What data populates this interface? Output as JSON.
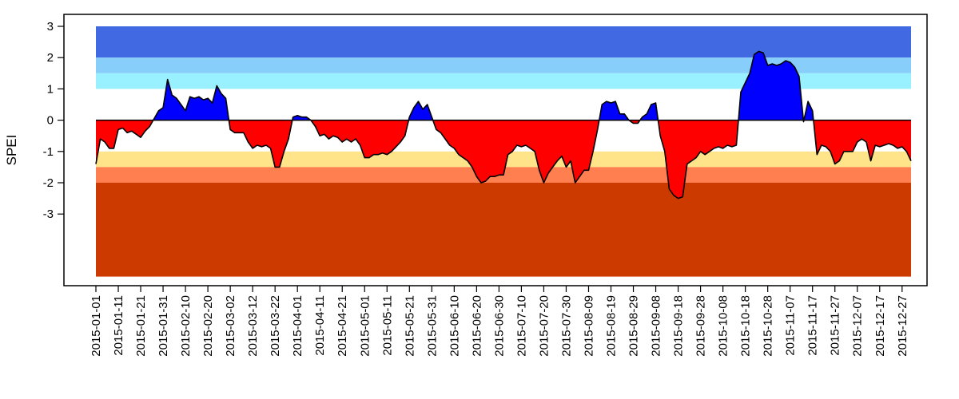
{
  "chart_data": {
    "type": "area",
    "title": "",
    "xlabel": "",
    "ylabel": "SPEI",
    "x_range": [
      "2015-01-01",
      "2015-12-31"
    ],
    "ylim": [
      -5,
      3.2
    ],
    "y_ticks": [
      3,
      2,
      1,
      0,
      -1,
      -2,
      -3
    ],
    "x_tick_labels": [
      "2015-01-01",
      "2015-01-11",
      "2015-01-21",
      "2015-01-31",
      "2015-02-10",
      "2015-02-20",
      "2015-03-02",
      "2015-03-12",
      "2015-03-22",
      "2015-04-01",
      "2015-04-11",
      "2015-04-21",
      "2015-05-01",
      "2015-05-11",
      "2015-05-21",
      "2015-05-31",
      "2015-06-10",
      "2015-06-20",
      "2015-06-30",
      "2015-07-10",
      "2015-07-20",
      "2015-07-30",
      "2015-08-09",
      "2015-08-19",
      "2015-08-29",
      "2015-09-08",
      "2015-09-18",
      "2015-09-28",
      "2015-10-08",
      "2015-10-18",
      "2015-10-28",
      "2015-11-07",
      "2015-11-17",
      "2015-11-27",
      "2015-12-07",
      "2015-12-17",
      "2015-12-27"
    ],
    "grid": false,
    "legend": "none",
    "background_bands": [
      {
        "from": 2,
        "to": 3,
        "color": "#4169e1"
      },
      {
        "from": 1.5,
        "to": 2,
        "color": "#87cefa"
      },
      {
        "from": 1,
        "to": 1.5,
        "color": "#99f0ff"
      },
      {
        "from": -1.5,
        "to": -1,
        "color": "#ffe48a"
      },
      {
        "from": -2,
        "to": -1.5,
        "color": "#ff7f50"
      },
      {
        "from": -5,
        "to": -2,
        "color": "#cc3a00"
      }
    ],
    "fill_colors": {
      "positive": "#0000ff",
      "negative": "#ff0000"
    },
    "series": [
      {
        "points": [
          [
            "2015-01-01",
            -1.4
          ],
          [
            "2015-01-03",
            -0.6
          ],
          [
            "2015-01-05",
            -0.7
          ],
          [
            "2015-01-07",
            -0.9
          ],
          [
            "2015-01-09",
            -0.9
          ],
          [
            "2015-01-11",
            -0.3
          ],
          [
            "2015-01-13",
            -0.25
          ],
          [
            "2015-01-15",
            -0.4
          ],
          [
            "2015-01-17",
            -0.35
          ],
          [
            "2015-01-19",
            -0.45
          ],
          [
            "2015-01-21",
            -0.55
          ],
          [
            "2015-01-23",
            -0.35
          ],
          [
            "2015-01-25",
            -0.2
          ],
          [
            "2015-01-27",
            0.05
          ],
          [
            "2015-01-29",
            0.3
          ],
          [
            "2015-01-31",
            0.4
          ],
          [
            "2015-02-02",
            1.3
          ],
          [
            "2015-02-04",
            0.8
          ],
          [
            "2015-02-06",
            0.7
          ],
          [
            "2015-02-08",
            0.5
          ],
          [
            "2015-02-10",
            0.3
          ],
          [
            "2015-02-12",
            0.75
          ],
          [
            "2015-02-14",
            0.7
          ],
          [
            "2015-02-16",
            0.75
          ],
          [
            "2015-02-18",
            0.65
          ],
          [
            "2015-02-20",
            0.7
          ],
          [
            "2015-02-22",
            0.55
          ],
          [
            "2015-02-24",
            1.1
          ],
          [
            "2015-02-26",
            0.85
          ],
          [
            "2015-02-28",
            0.7
          ],
          [
            "2015-03-02",
            -0.3
          ],
          [
            "2015-03-04",
            -0.4
          ],
          [
            "2015-03-06",
            -0.4
          ],
          [
            "2015-03-08",
            -0.4
          ],
          [
            "2015-03-10",
            -0.7
          ],
          [
            "2015-03-12",
            -0.9
          ],
          [
            "2015-03-14",
            -0.8
          ],
          [
            "2015-03-16",
            -0.85
          ],
          [
            "2015-03-18",
            -0.8
          ],
          [
            "2015-03-20",
            -0.9
          ],
          [
            "2015-03-22",
            -1.5
          ],
          [
            "2015-03-24",
            -1.5
          ],
          [
            "2015-03-26",
            -1.0
          ],
          [
            "2015-03-28",
            -0.6
          ],
          [
            "2015-03-30",
            0.1
          ],
          [
            "2015-04-01",
            0.15
          ],
          [
            "2015-04-03",
            0.1
          ],
          [
            "2015-04-05",
            0.1
          ],
          [
            "2015-04-07",
            0.0
          ],
          [
            "2015-04-09",
            -0.2
          ],
          [
            "2015-04-11",
            -0.5
          ],
          [
            "2015-04-13",
            -0.45
          ],
          [
            "2015-04-15",
            -0.6
          ],
          [
            "2015-04-17",
            -0.5
          ],
          [
            "2015-04-19",
            -0.55
          ],
          [
            "2015-04-21",
            -0.7
          ],
          [
            "2015-04-23",
            -0.6
          ],
          [
            "2015-04-25",
            -0.7
          ],
          [
            "2015-04-27",
            -0.6
          ],
          [
            "2015-04-29",
            -0.8
          ],
          [
            "2015-05-01",
            -1.2
          ],
          [
            "2015-05-03",
            -1.2
          ],
          [
            "2015-05-05",
            -1.1
          ],
          [
            "2015-05-07",
            -1.1
          ],
          [
            "2015-05-09",
            -1.05
          ],
          [
            "2015-05-11",
            -1.1
          ],
          [
            "2015-05-13",
            -1.0
          ],
          [
            "2015-05-15",
            -0.85
          ],
          [
            "2015-05-17",
            -0.7
          ],
          [
            "2015-05-19",
            -0.5
          ],
          [
            "2015-05-21",
            0.1
          ],
          [
            "2015-05-23",
            0.4
          ],
          [
            "2015-05-25",
            0.6
          ],
          [
            "2015-05-27",
            0.35
          ],
          [
            "2015-05-29",
            0.5
          ],
          [
            "2015-05-31",
            0.1
          ],
          [
            "2015-06-02",
            -0.3
          ],
          [
            "2015-06-04",
            -0.4
          ],
          [
            "2015-06-06",
            -0.6
          ],
          [
            "2015-06-08",
            -0.8
          ],
          [
            "2015-06-10",
            -0.9
          ],
          [
            "2015-06-12",
            -1.1
          ],
          [
            "2015-06-14",
            -1.2
          ],
          [
            "2015-06-16",
            -1.3
          ],
          [
            "2015-06-18",
            -1.5
          ],
          [
            "2015-06-20",
            -1.8
          ],
          [
            "2015-06-22",
            -2.0
          ],
          [
            "2015-06-24",
            -1.95
          ],
          [
            "2015-06-26",
            -1.8
          ],
          [
            "2015-06-28",
            -1.8
          ],
          [
            "2015-06-30",
            -1.75
          ],
          [
            "2015-07-02",
            -1.75
          ],
          [
            "2015-07-04",
            -1.1
          ],
          [
            "2015-07-06",
            -1.0
          ],
          [
            "2015-07-08",
            -0.8
          ],
          [
            "2015-07-10",
            -0.85
          ],
          [
            "2015-07-12",
            -0.8
          ],
          [
            "2015-07-14",
            -0.9
          ],
          [
            "2015-07-16",
            -1.0
          ],
          [
            "2015-07-18",
            -1.6
          ],
          [
            "2015-07-20",
            -2.0
          ],
          [
            "2015-07-22",
            -1.7
          ],
          [
            "2015-07-24",
            -1.5
          ],
          [
            "2015-07-26",
            -1.3
          ],
          [
            "2015-07-28",
            -1.15
          ],
          [
            "2015-07-30",
            -1.5
          ],
          [
            "2015-08-01",
            -1.3
          ],
          [
            "2015-08-03",
            -2.0
          ],
          [
            "2015-08-05",
            -1.8
          ],
          [
            "2015-08-07",
            -1.6
          ],
          [
            "2015-08-09",
            -1.6
          ],
          [
            "2015-08-11",
            -1.0
          ],
          [
            "2015-08-13",
            -0.3
          ],
          [
            "2015-08-15",
            0.5
          ],
          [
            "2015-08-17",
            0.6
          ],
          [
            "2015-08-19",
            0.55
          ],
          [
            "2015-08-21",
            0.6
          ],
          [
            "2015-08-23",
            0.2
          ],
          [
            "2015-08-25",
            0.2
          ],
          [
            "2015-08-27",
            0.0
          ],
          [
            "2015-08-29",
            -0.1
          ],
          [
            "2015-08-31",
            -0.1
          ],
          [
            "2015-09-02",
            0.1
          ],
          [
            "2015-09-04",
            0.2
          ],
          [
            "2015-09-06",
            0.5
          ],
          [
            "2015-09-08",
            0.55
          ],
          [
            "2015-09-10",
            -0.5
          ],
          [
            "2015-09-12",
            -1.0
          ],
          [
            "2015-09-14",
            -2.2
          ],
          [
            "2015-09-16",
            -2.4
          ],
          [
            "2015-09-18",
            -2.5
          ],
          [
            "2015-09-20",
            -2.45
          ],
          [
            "2015-09-22",
            -1.4
          ],
          [
            "2015-09-24",
            -1.3
          ],
          [
            "2015-09-26",
            -1.2
          ],
          [
            "2015-09-28",
            -1.0
          ],
          [
            "2015-09-30",
            -1.1
          ],
          [
            "2015-10-02",
            -1.0
          ],
          [
            "2015-10-04",
            -0.9
          ],
          [
            "2015-10-06",
            -0.85
          ],
          [
            "2015-10-08",
            -0.9
          ],
          [
            "2015-10-10",
            -0.8
          ],
          [
            "2015-10-12",
            -0.85
          ],
          [
            "2015-10-14",
            -0.8
          ],
          [
            "2015-10-16",
            0.9
          ],
          [
            "2015-10-18",
            1.2
          ],
          [
            "2015-10-20",
            1.5
          ],
          [
            "2015-10-22",
            2.1
          ],
          [
            "2015-10-24",
            2.2
          ],
          [
            "2015-10-26",
            2.15
          ],
          [
            "2015-10-28",
            1.75
          ],
          [
            "2015-10-30",
            1.8
          ],
          [
            "2015-11-01",
            1.75
          ],
          [
            "2015-11-03",
            1.8
          ],
          [
            "2015-11-05",
            1.9
          ],
          [
            "2015-11-07",
            1.85
          ],
          [
            "2015-11-09",
            1.7
          ],
          [
            "2015-11-11",
            1.4
          ],
          [
            "2015-11-13",
            -0.05
          ],
          [
            "2015-11-15",
            0.6
          ],
          [
            "2015-11-17",
            0.3
          ],
          [
            "2015-11-19",
            -1.1
          ],
          [
            "2015-11-21",
            -0.8
          ],
          [
            "2015-11-23",
            -0.85
          ],
          [
            "2015-11-25",
            -1.0
          ],
          [
            "2015-11-27",
            -1.4
          ],
          [
            "2015-11-29",
            -1.3
          ],
          [
            "2015-12-01",
            -1.0
          ],
          [
            "2015-12-03",
            -1.0
          ],
          [
            "2015-12-05",
            -1.0
          ],
          [
            "2015-12-07",
            -0.7
          ],
          [
            "2015-12-09",
            -0.6
          ],
          [
            "2015-12-11",
            -0.7
          ],
          [
            "2015-12-13",
            -1.3
          ],
          [
            "2015-12-15",
            -0.8
          ],
          [
            "2015-12-17",
            -0.85
          ],
          [
            "2015-12-19",
            -0.8
          ],
          [
            "2015-12-21",
            -0.75
          ],
          [
            "2015-12-23",
            -0.8
          ],
          [
            "2015-12-25",
            -0.9
          ],
          [
            "2015-12-27",
            -0.85
          ],
          [
            "2015-12-29",
            -1.0
          ],
          [
            "2015-12-31",
            -1.3
          ]
        ]
      }
    ]
  }
}
